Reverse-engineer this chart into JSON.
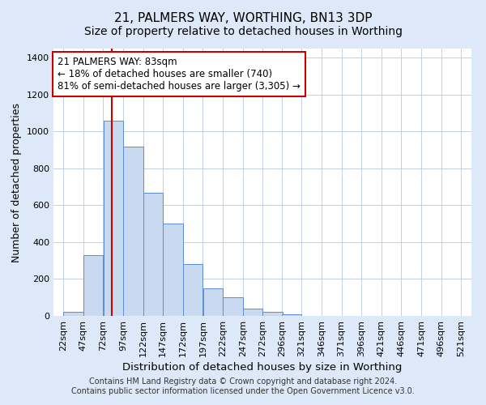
{
  "title": "21, PALMERS WAY, WORTHING, BN13 3DP",
  "subtitle": "Size of property relative to detached houses in Worthing",
  "xlabel": "Distribution of detached houses by size in Worthing",
  "ylabel": "Number of detached properties",
  "footnote1": "Contains HM Land Registry data © Crown copyright and database right 2024.",
  "footnote2": "Contains public sector information licensed under the Open Government Licence v3.0.",
  "bin_edges": [
    22,
    47,
    72,
    97,
    122,
    147,
    172,
    197,
    222,
    247,
    272,
    296,
    321,
    346,
    371,
    396,
    421,
    446,
    471,
    496,
    521
  ],
  "bar_heights": [
    20,
    330,
    1060,
    920,
    670,
    500,
    280,
    150,
    100,
    40,
    20,
    10,
    0,
    0,
    0,
    0,
    0,
    0,
    0,
    0
  ],
  "bar_color": "#c9d9f0",
  "bar_edge_color": "#5b8dd4",
  "property_size": 83,
  "red_line_color": "#cc0000",
  "annotation_line1": "21 PALMERS WAY: 83sqm",
  "annotation_line2": "← 18% of detached houses are smaller (740)",
  "annotation_line3": "81% of semi-detached houses are larger (3,305) →",
  "annotation_box_color": "#ffffff",
  "annotation_box_edge_color": "#cc0000",
  "ylim": [
    0,
    1450
  ],
  "xlim_left": 9.5,
  "xlim_right": 534,
  "title_fontsize": 11,
  "subtitle_fontsize": 10,
  "xlabel_fontsize": 9.5,
  "ylabel_fontsize": 9,
  "tick_fontsize": 8,
  "annotation_fontsize": 8.5,
  "footnote_fontsize": 7,
  "background_color": "#dde8f8",
  "plot_background_color": "#ffffff",
  "grid_color": "#b8c8e0"
}
